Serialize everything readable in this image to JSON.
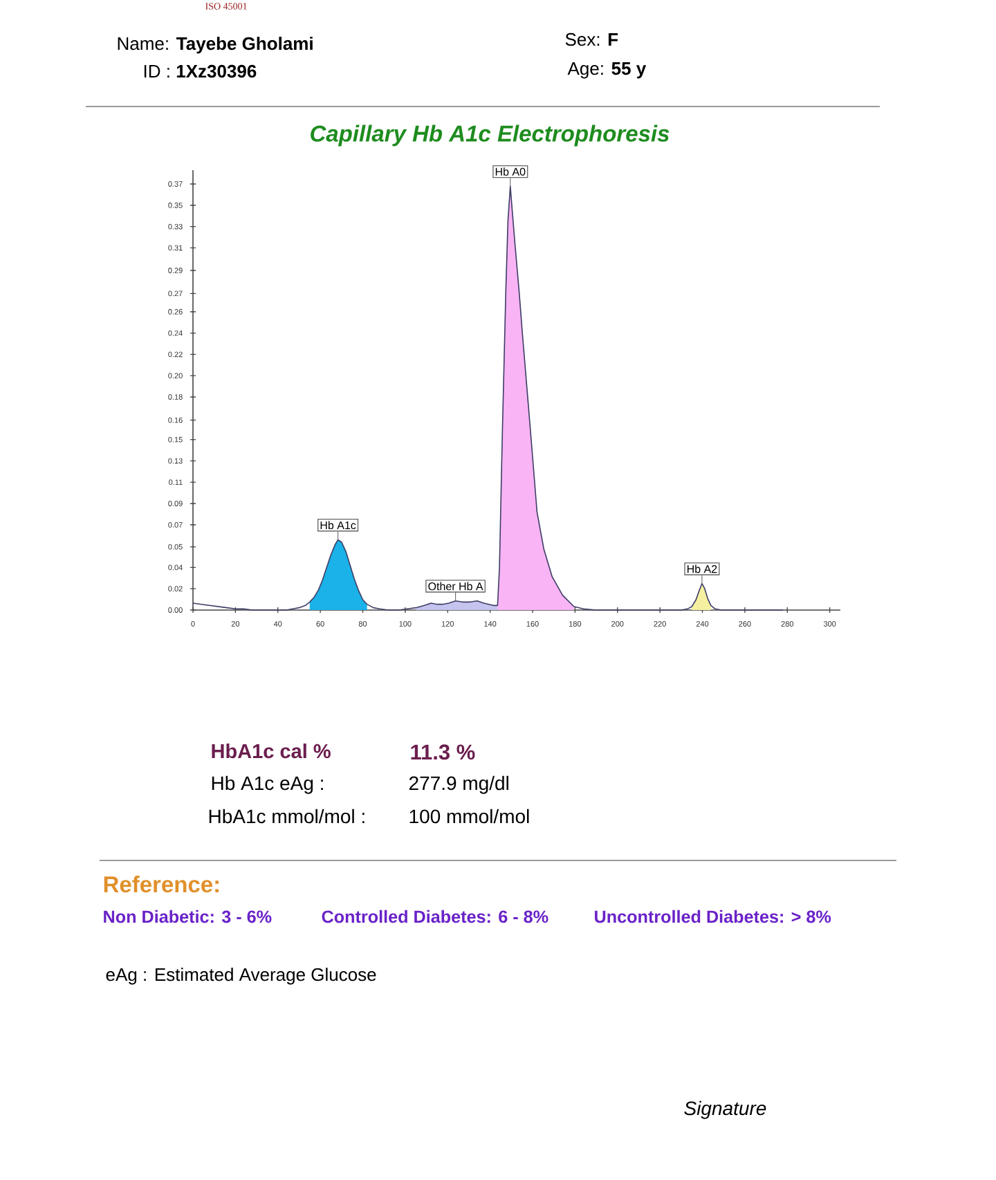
{
  "chart_data": {
    "type": "area",
    "title": "Capillary Hb A1c Electrophoresis",
    "xlim": [
      0,
      305
    ],
    "ylim": [
      0,
      0.382
    ],
    "xticks": [
      0,
      20,
      40,
      60,
      80,
      100,
      120,
      140,
      160,
      180,
      200,
      220,
      240,
      260,
      280,
      300
    ],
    "yticks": [
      {
        "value": 0,
        "label": "0.00"
      },
      {
        "value": 0.0185,
        "label": "0.02"
      },
      {
        "value": 0.037,
        "label": "0.04"
      },
      {
        "value": 0.0549,
        "label": "0.05"
      },
      {
        "value": 0.074,
        "label": "0.07"
      },
      {
        "value": 0.0925,
        "label": "0.09"
      },
      {
        "value": 0.111,
        "label": "0.11"
      },
      {
        "value": 0.1295,
        "label": "0.13"
      },
      {
        "value": 0.148,
        "label": "0.15"
      },
      {
        "value": 0.1649,
        "label": "0.16"
      },
      {
        "value": 0.185,
        "label": "0.18"
      },
      {
        "value": 0.2035,
        "label": "0.20"
      },
      {
        "value": 0.222,
        "label": "0.22"
      },
      {
        "value": 0.2405,
        "label": "0.24"
      },
      {
        "value": 0.259,
        "label": "0.26"
      },
      {
        "value": 0.2749,
        "label": "0.27"
      },
      {
        "value": 0.2949,
        "label": "0.29"
      },
      {
        "value": 0.3145,
        "label": "0.31"
      },
      {
        "value": 0.333,
        "label": "0.33"
      },
      {
        "value": 0.3515,
        "label": "0.35"
      },
      {
        "value": 0.37,
        "label": "0.37"
      }
    ],
    "series": [
      {
        "type": "line",
        "color": "#3d3d66",
        "x": [
          0,
          4,
          8,
          12,
          16,
          20,
          24,
          28,
          34,
          40,
          44,
          47,
          50,
          53,
          55,
          57,
          59,
          61,
          63,
          65,
          67,
          68.3,
          70,
          72,
          74,
          76,
          78,
          80,
          82,
          85,
          88,
          92,
          97,
          101,
          105,
          109,
          112.2,
          115,
          117.6,
          120.5,
          123.7,
          127,
          130.6,
          133.9,
          137,
          141.5,
          143.5,
          144.4,
          145.8,
          147.4,
          148.4,
          149.5,
          150.5,
          151.7,
          153.6,
          155.3,
          157.1,
          158.9,
          160.7,
          162.1,
          165.3,
          169.2,
          174.1,
          179.5,
          184,
          190,
          200,
          210,
          220,
          230,
          233,
          235,
          237,
          238.5,
          239.8,
          241,
          242.5,
          244,
          246,
          249,
          260,
          270,
          278
        ],
        "values": [
          0.006,
          0.005,
          0.004,
          0.003,
          0.002,
          0.001,
          0.001,
          0,
          0,
          0,
          0,
          0.001,
          0.002,
          0.004,
          0.007,
          0.011,
          0.017,
          0.026,
          0.037,
          0.048,
          0.057,
          0.061,
          0.059,
          0.051,
          0.039,
          0.027,
          0.017,
          0.009,
          0.005,
          0.002,
          0.001,
          0,
          0,
          0.001,
          0.002,
          0.004,
          0.006,
          0.005,
          0.005,
          0.006,
          0.008,
          0.007,
          0.007,
          0.008,
          0.006,
          0.004,
          0.004,
          0.037,
          0.157,
          0.278,
          0.338,
          0.368,
          0.345,
          0.318,
          0.278,
          0.238,
          0.198,
          0.158,
          0.117,
          0.085,
          0.053,
          0.029,
          0.013,
          0.003,
          0.001,
          0,
          0,
          0,
          0,
          0,
          0.001,
          0.003,
          0.009,
          0.017,
          0.023,
          0.019,
          0.01,
          0.004,
          0.001,
          0,
          0,
          0,
          0
        ]
      },
      {
        "name": "Hb A1c",
        "color": "#1ab2e8",
        "x": [
          55,
          57,
          59,
          61,
          63,
          65,
          67,
          68.3,
          70,
          72,
          74,
          76,
          78,
          80,
          82
        ],
        "values": [
          0.007,
          0.011,
          0.017,
          0.026,
          0.037,
          0.048,
          0.057,
          0.061,
          0.059,
          0.051,
          0.039,
          0.027,
          0.017,
          0.009,
          0.005
        ]
      },
      {
        "name": "Other Hb A",
        "color": "#c4c4ee",
        "x": [
          105,
          109,
          112.2,
          115,
          117.6,
          120.5,
          123.7,
          127,
          130.6,
          133.9,
          137,
          141.5,
          143.5
        ],
        "values": [
          0.002,
          0.004,
          0.006,
          0.005,
          0.005,
          0.006,
          0.008,
          0.007,
          0.007,
          0.008,
          0.006,
          0.004,
          0.004
        ]
      },
      {
        "name": "Hb A0",
        "color": "#f8b4f4",
        "x": [
          143.5,
          144.4,
          145.8,
          147.4,
          148.4,
          149.5,
          150.5,
          151.7,
          153.6,
          155.3,
          157.1,
          158.9,
          160.7,
          162.1,
          165.3,
          169.2,
          174.1,
          179.5
        ],
        "values": [
          0.004,
          0.037,
          0.157,
          0.278,
          0.338,
          0.368,
          0.345,
          0.318,
          0.278,
          0.238,
          0.198,
          0.158,
          0.117,
          0.085,
          0.053,
          0.029,
          0.013,
          0.003
        ]
      },
      {
        "name": "Hb A2",
        "color": "#f5f0a0",
        "x": [
          235,
          237,
          238.5,
          239.8,
          241,
          242.5,
          244
        ],
        "values": [
          0.003,
          0.009,
          0.017,
          0.023,
          0.019,
          0.01,
          0.004
        ]
      }
    ],
    "annotations": [
      "ISO 45001",
      "Name: **Tayebe Gholami**",
      "ID : **1Xz30396**",
      "Sex: **F**",
      "Age: **55 y**",
      "HbA1c cal %",
      "11.3 %",
      "Hb A1c eAg :",
      "277.9 mg/dl",
      "HbA1c mmol/mol :",
      "100 mmol/mol",
      "Reference:",
      "Non Diabetic: 3 - 6%",
      "Controlled Diabetes: 6 - 8%",
      "Uncontrolled Diabetes: > 8%",
      "eAg : Estimated Average Glucose",
      "Signature"
    ]
  }
}
